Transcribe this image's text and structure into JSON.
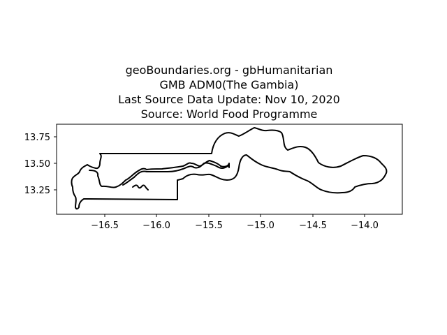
{
  "title_lines": [
    "geoBoundaries.org - gbHumanitarian",
    "GMB ADM0(The Gambia)",
    "Last Source Data Update: Nov 10, 2020",
    "Source: World Food Programme"
  ],
  "chart_data": {
    "type": "map",
    "x_ticks": [
      "−16.5",
      "−16.0",
      "−15.5",
      "−15.0",
      "−14.5",
      "−14.0"
    ],
    "y_ticks": [
      "13.75",
      "13.50",
      "13.25"
    ],
    "xlim": [
      -16.95,
      -13.63
    ],
    "ylim": [
      13.03,
      13.87
    ],
    "grid": false
  }
}
